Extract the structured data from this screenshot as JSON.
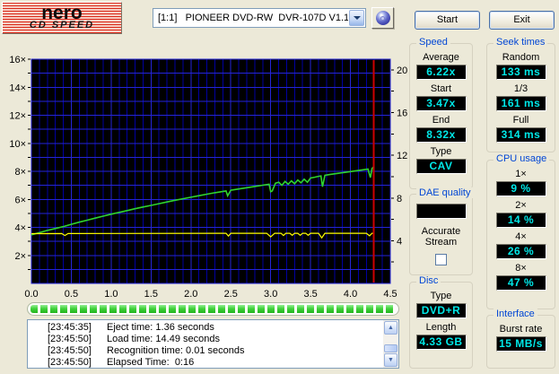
{
  "header": {
    "logo_line1": "nero",
    "logo_line2": "CD SPEED",
    "drive_select_value": "[1:1]   PIONEER DVD-RW  DVR-107D V1.10",
    "start_button": "Start",
    "exit_button": "Exit"
  },
  "chart_data": {
    "type": "line",
    "x_axis": {
      "unit": "GB",
      "min": 0,
      "max": 4.5,
      "major_step": 0.5,
      "minor_grid_step": 0.1,
      "tick_labels": [
        "0.0",
        "0.5",
        "1.0",
        "1.5",
        "2.0",
        "2.5",
        "3.0",
        "3.5",
        "4.0",
        "4.5"
      ]
    },
    "y_left_axis": {
      "min": 0,
      "max": 16,
      "grid_step": 1,
      "label_step": 2,
      "suffix": "×",
      "tick_labels": [
        "2×",
        "4×",
        "6×",
        "8×",
        "10×",
        "12×",
        "14×",
        "16×"
      ]
    },
    "y_right_axis": {
      "min": 0,
      "max": 21,
      "tick_step": 2,
      "label_values": [
        4,
        8,
        12,
        16,
        20
      ],
      "tick_labels": [
        "4",
        "8",
        "12",
        "16",
        "20"
      ]
    },
    "colors": {
      "background": "#000000",
      "grid_major": "#2525d8",
      "grid_minor": "#0000a0",
      "marker": "#cc0000",
      "axis_text": "#000000"
    },
    "position_marker_x": 4.29,
    "series": [
      {
        "name": "read-speed",
        "color": "#2fd42f",
        "points": [
          [
            0,
            3.47
          ],
          [
            0.1,
            3.62
          ],
          [
            0.2,
            3.78
          ],
          [
            0.3,
            3.92
          ],
          [
            0.4,
            4.06
          ],
          [
            0.5,
            4.22
          ],
          [
            0.6,
            4.37
          ],
          [
            0.7,
            4.51
          ],
          [
            0.8,
            4.66
          ],
          [
            0.9,
            4.8
          ],
          [
            1.0,
            4.94
          ],
          [
            1.1,
            5.07
          ],
          [
            1.2,
            5.2
          ],
          [
            1.3,
            5.33
          ],
          [
            1.4,
            5.45
          ],
          [
            1.5,
            5.57
          ],
          [
            1.6,
            5.69
          ],
          [
            1.7,
            5.81
          ],
          [
            1.8,
            5.93
          ],
          [
            1.9,
            6.04
          ],
          [
            2.0,
            6.15
          ],
          [
            2.1,
            6.26
          ],
          [
            2.2,
            6.37
          ],
          [
            2.3,
            6.47
          ],
          [
            2.42,
            6.58
          ],
          [
            2.44,
            6.6
          ],
          [
            2.46,
            6.25
          ],
          [
            2.5,
            6.65
          ],
          [
            2.6,
            6.74
          ],
          [
            2.7,
            6.83
          ],
          [
            2.8,
            6.92
          ],
          [
            2.9,
            7.01
          ],
          [
            2.98,
            7.08
          ],
          [
            3.0,
            6.55
          ],
          [
            3.02,
            6.6
          ],
          [
            3.06,
            7.15
          ],
          [
            3.1,
            7.22
          ],
          [
            3.14,
            7.0
          ],
          [
            3.18,
            7.28
          ],
          [
            3.22,
            7.08
          ],
          [
            3.26,
            7.32
          ],
          [
            3.3,
            7.12
          ],
          [
            3.34,
            7.38
          ],
          [
            3.38,
            7.18
          ],
          [
            3.42,
            7.44
          ],
          [
            3.46,
            7.22
          ],
          [
            3.5,
            7.52
          ],
          [
            3.55,
            7.58
          ],
          [
            3.6,
            7.64
          ],
          [
            3.63,
            7.67
          ],
          [
            3.65,
            6.9
          ],
          [
            3.68,
            7.72
          ],
          [
            3.75,
            7.78
          ],
          [
            3.85,
            7.86
          ],
          [
            3.95,
            7.94
          ],
          [
            4.05,
            8.02
          ],
          [
            4.15,
            8.1
          ],
          [
            4.22,
            8.16
          ],
          [
            4.25,
            7.55
          ],
          [
            4.27,
            8.2
          ],
          [
            4.29,
            8.32
          ]
        ]
      },
      {
        "name": "reference-speed",
        "color": "#ffff00",
        "points": [
          [
            0,
            3.55
          ],
          [
            0.38,
            3.56
          ],
          [
            0.42,
            3.42
          ],
          [
            0.46,
            3.56
          ],
          [
            2.4,
            3.58
          ],
          [
            2.44,
            3.58
          ],
          [
            2.47,
            3.38
          ],
          [
            2.5,
            3.58
          ],
          [
            2.95,
            3.58
          ],
          [
            3.0,
            3.32
          ],
          [
            3.05,
            3.58
          ],
          [
            3.13,
            3.58
          ],
          [
            3.16,
            3.42
          ],
          [
            3.19,
            3.58
          ],
          [
            3.24,
            3.58
          ],
          [
            3.27,
            3.44
          ],
          [
            3.3,
            3.58
          ],
          [
            3.34,
            3.58
          ],
          [
            3.37,
            3.44
          ],
          [
            3.4,
            3.58
          ],
          [
            3.44,
            3.58
          ],
          [
            3.47,
            3.44
          ],
          [
            3.5,
            3.58
          ],
          [
            3.6,
            3.58
          ],
          [
            3.64,
            3.25
          ],
          [
            3.68,
            3.58
          ],
          [
            4.2,
            3.58
          ],
          [
            4.24,
            3.4
          ],
          [
            4.27,
            3.58
          ],
          [
            4.29,
            3.58
          ]
        ]
      }
    ]
  },
  "panels": {
    "speed": {
      "title": "Speed",
      "fields": [
        {
          "label": "Average",
          "value": "6.22x"
        },
        {
          "label": "Start",
          "value": "3.47x"
        },
        {
          "label": "End",
          "value": "8.32x"
        },
        {
          "label": "Type",
          "value": "CAV"
        }
      ]
    },
    "seek_times": {
      "title": "Seek times",
      "fields": [
        {
          "label": "Random",
          "value": "133 ms"
        },
        {
          "label": "1/3",
          "value": "161 ms"
        },
        {
          "label": "Full",
          "value": "314 ms"
        }
      ]
    },
    "dae_quality": {
      "title": "DAE quality",
      "value": "",
      "checkbox_label": "Accurate Stream",
      "checkbox_checked": false
    },
    "cpu_usage": {
      "title": "CPU usage",
      "fields": [
        {
          "label": "1×",
          "value": "9 %"
        },
        {
          "label": "2×",
          "value": "14 %"
        },
        {
          "label": "4×",
          "value": "26 %"
        },
        {
          "label": "8×",
          "value": "47 %"
        }
      ]
    },
    "disc": {
      "title": "Disc",
      "fields": [
        {
          "label": "Type",
          "value": "DVD+R"
        },
        {
          "label": "Length",
          "value": "4.33 GB"
        }
      ]
    },
    "interface": {
      "title": "Interface",
      "fields": [
        {
          "label": "Burst rate",
          "value": "15 MB/s"
        }
      ]
    }
  },
  "progress": {
    "percent": 100
  },
  "log": {
    "entries": [
      {
        "time": "[23:45:35]",
        "text": "Eject time: 1.36 seconds"
      },
      {
        "time": "[23:45:50]",
        "text": "Load time: 14.49 seconds"
      },
      {
        "time": "[23:45:50]",
        "text": "Recognition time: 0.01 seconds"
      },
      {
        "time": "[23:45:50]",
        "text": "Elapsed Time:  0:16"
      }
    ]
  }
}
